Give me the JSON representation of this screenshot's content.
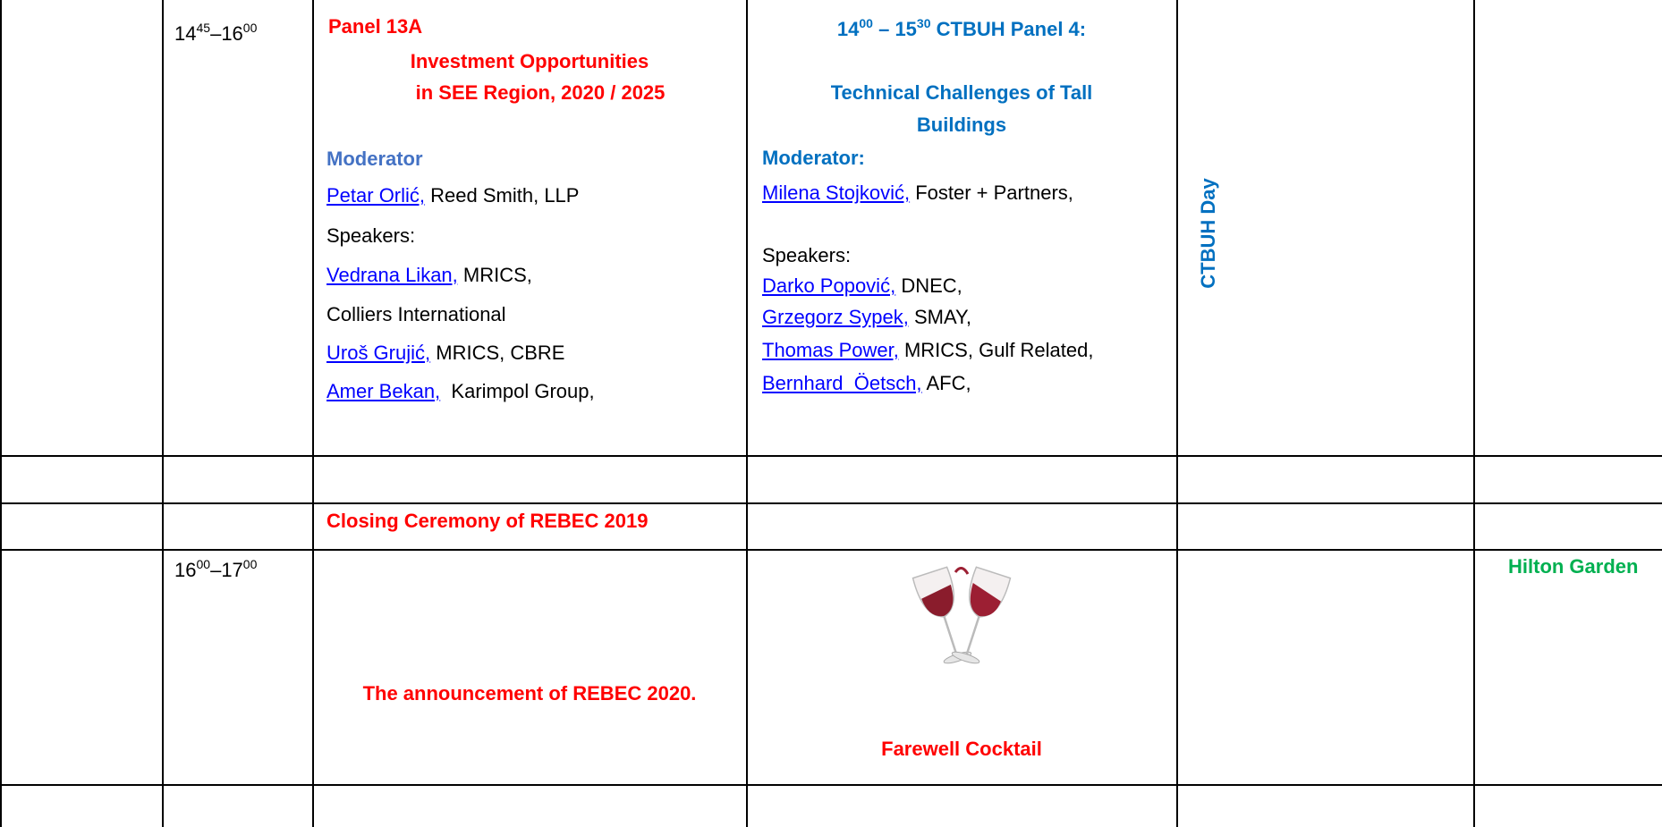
{
  "table": {
    "row_1": {
      "time": {
        "start_hour": "14",
        "start_minute": "45",
        "dash": "–",
        "end_hour": "16",
        "end_minute": "00"
      },
      "panel_13a": {
        "title": "Panel 13A",
        "subtitle": [
          "Investment Opportunities",
          "in SEE Region, 2020 / 2025"
        ],
        "moderator_label": "Moderator",
        "moderator": {
          "name": "Petar Orlić,",
          "affiliation": "Reed Smith, LLP"
        },
        "speakers_label": "Speakers:",
        "speakers": [
          {
            "name": "Vedrana Likan,",
            "affiliation": "MRICS,",
            "affiliation_line2": "Colliers International"
          },
          {
            "name": "Uroš Grujić,",
            "affiliation": "MRICS, CBRE"
          },
          {
            "name": "Amer Bekan,",
            "affiliation": "Karimpol Group,"
          }
        ]
      },
      "ctbuh_panel": {
        "start_hour": "14",
        "start_minute": "00",
        "dash": "–",
        "end_hour": "15",
        "end_minute": "30",
        "title": "CTBUH Panel 4:",
        "subtitle": [
          "Technical Challenges of Tall",
          "Buildings"
        ],
        "moderator_label": "Moderator:",
        "moderator": {
          "name": "Milena Stojković,",
          "affiliation": "Foster + Partners,"
        },
        "speakers_label": "Speakers:",
        "speakers": [
          {
            "name": "Darko Popović,",
            "affiliation": "DNEC,"
          },
          {
            "name": "Grzegorz Sypek,",
            "affiliation": "SMAY,"
          },
          {
            "name": "Thomas Power,",
            "affiliation": "MRICS, Gulf Related,"
          },
          {
            "name": "Bernhard  Öetsch,",
            "affiliation": "AFC,"
          }
        ]
      },
      "side_label": "CTBUH Day"
    },
    "closing": "Closing Ceremony of REBEC 2019",
    "row_2": {
      "time": {
        "start_hour": "16",
        "start_minute": "00",
        "dash": "–",
        "end_hour": "17",
        "end_minute": "00"
      },
      "announcement": "The announcement of REBEC 2020.",
      "farewell": "Farewell Cocktail",
      "venue": "Hilton Garden"
    }
  }
}
